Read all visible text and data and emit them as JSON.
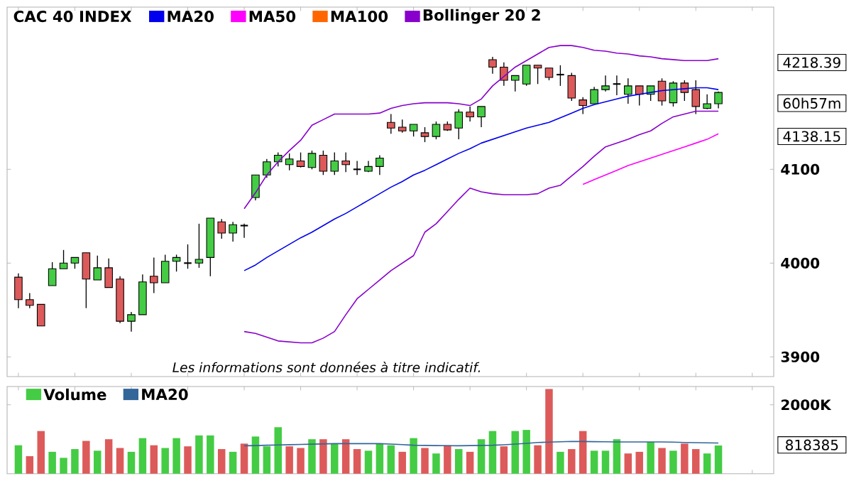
{
  "chart_data": [
    {
      "type": "candlestick",
      "title": "CAC 40 INDEX",
      "legend": "top left",
      "tick_labels": "y",
      "categories": [
        null,
        null,
        null,
        null,
        null,
        null,
        null,
        null,
        null,
        null,
        null,
        null,
        null,
        null,
        null,
        null,
        null,
        null,
        null,
        null,
        null,
        null,
        null,
        null,
        null,
        null,
        null,
        null,
        null,
        null,
        null,
        null,
        null,
        null,
        null,
        null,
        null,
        null,
        null,
        null,
        null,
        null,
        null,
        null,
        null,
        null,
        null,
        null,
        null,
        null,
        null,
        null,
        null,
        null,
        null,
        null,
        null,
        null,
        null,
        null,
        null,
        null,
        null
      ],
      "ohlc": [
        [
          3985,
          3989,
          3952,
          3961
        ],
        [
          3961,
          3968,
          3952,
          3955
        ],
        [
          3956,
          3956,
          3933,
          3933
        ],
        [
          3976,
          4001,
          3976,
          3994
        ],
        [
          3994,
          4014,
          3994,
          4000
        ],
        [
          4000,
          4006,
          3994,
          4006
        ],
        [
          4011,
          4011,
          3952,
          3983
        ],
        [
          3982,
          4008,
          3982,
          3995
        ],
        [
          3995,
          4005,
          3974,
          3974
        ],
        [
          3983,
          3986,
          3936,
          3938
        ],
        [
          3938,
          3948,
          3927,
          3945
        ],
        [
          3945,
          3988,
          3945,
          3980
        ],
        [
          3986,
          4006,
          3968,
          3979
        ],
        [
          3979,
          4009,
          3979,
          4002
        ],
        [
          4002,
          4009,
          3991,
          4006
        ],
        [
          4000,
          4020,
          3994,
          4000
        ],
        [
          4000,
          4042,
          3995,
          4004
        ],
        [
          4006,
          4048,
          3986,
          4048
        ],
        [
          4044,
          4047,
          4026,
          4032
        ],
        [
          4032,
          4044,
          4023,
          4041
        ],
        [
          4040,
          4042,
          4027,
          4040
        ],
        [
          4070,
          4094,
          4067,
          4094
        ],
        [
          4094,
          4111,
          4091,
          4108
        ],
        [
          4108,
          4118,
          4103,
          4115
        ],
        [
          4105,
          4117,
          4099,
          4111
        ],
        [
          4109,
          4118,
          4102,
          4103
        ],
        [
          4102,
          4120,
          4100,
          4117
        ],
        [
          4115,
          4120,
          4094,
          4098
        ],
        [
          4098,
          4118,
          4094,
          4109
        ],
        [
          4109,
          4118,
          4097,
          4105
        ],
        [
          4100,
          4109,
          4094,
          4100
        ],
        [
          4098,
          4109,
          4097,
          4103
        ],
        [
          4103,
          4115,
          4094,
          4112
        ],
        [
          4150,
          4159,
          4138,
          4144
        ],
        [
          4145,
          4153,
          4139,
          4141
        ],
        [
          4141,
          4148,
          4135,
          4148
        ],
        [
          4139,
          4145,
          4129,
          4135
        ],
        [
          4135,
          4151,
          4132,
          4148
        ],
        [
          4148,
          4151,
          4141,
          4142
        ],
        [
          4144,
          4164,
          4132,
          4161
        ],
        [
          4161,
          4167,
          4151,
          4156
        ],
        [
          4156,
          4167,
          4145,
          4167
        ],
        [
          4217,
          4220,
          4202,
          4209
        ],
        [
          4209,
          4214,
          4189,
          4195
        ],
        [
          4195,
          4200,
          4183,
          4200
        ],
        [
          4191,
          4211,
          4189,
          4211
        ],
        [
          4211,
          4211,
          4191,
          4208
        ],
        [
          4208,
          4208,
          4195,
          4198
        ],
        [
          4201,
          4211,
          4189,
          4201
        ],
        [
          4200,
          4203,
          4173,
          4176
        ],
        [
          4174,
          4177,
          4159,
          4168
        ],
        [
          4170,
          4188,
          4170,
          4185
        ],
        [
          4185,
          4200,
          4183,
          4189
        ],
        [
          4191,
          4200,
          4179,
          4191
        ],
        [
          4180,
          4197,
          4170,
          4189
        ],
        [
          4189,
          4189,
          4168,
          4180
        ],
        [
          4180,
          4189,
          4173,
          4189
        ],
        [
          4194,
          4197,
          4168,
          4173
        ],
        [
          4171,
          4194,
          4167,
          4192
        ],
        [
          4192,
          4195,
          4173,
          4182
        ],
        [
          4185,
          4195,
          4159,
          4167
        ],
        [
          4165,
          4180,
          4164,
          4170
        ],
        [
          4170,
          4183,
          4165,
          4182
        ]
      ],
      "colors": [
        "#dd5a5a",
        "#dd5a5a",
        "#dd5a5a",
        "#44cc44",
        "#44cc44",
        "#44cc44",
        "#dd5a5a",
        "#44cc44",
        "#dd5a5a",
        "#dd5a5a",
        "#44cc44",
        "#44cc44",
        "#dd5a5a",
        "#44cc44",
        "#44cc44",
        "#000000",
        "#44cc44",
        "#44cc44",
        "#dd5a5a",
        "#44cc44",
        "#000000",
        "#44cc44",
        "#44cc44",
        "#44cc44",
        "#44cc44",
        "#dd5a5a",
        "#44cc44",
        "#dd5a5a",
        "#44cc44",
        "#dd5a5a",
        "#000000",
        "#44cc44",
        "#44cc44",
        "#dd5a5a",
        "#dd5a5a",
        "#44cc44",
        "#dd5a5a",
        "#44cc44",
        "#dd5a5a",
        "#44cc44",
        "#dd5a5a",
        "#44cc44",
        "#dd5a5a",
        "#dd5a5a",
        "#44cc44",
        "#44cc44",
        "#dd5a5a",
        "#dd5a5a",
        "#000000",
        "#dd5a5a",
        "#dd5a5a",
        "#44cc44",
        "#44cc44",
        "#000000",
        "#44cc44",
        "#dd5a5a",
        "#44cc44",
        "#dd5a5a",
        "#44cc44",
        "#dd5a5a",
        "#dd5a5a",
        "#44cc44",
        "#44cc44"
      ],
      "series": [
        {
          "type": "line",
          "name": "MA20",
          "color": "#0000ee",
          "values": [
            null,
            null,
            null,
            null,
            null,
            null,
            null,
            null,
            null,
            null,
            null,
            null,
            null,
            null,
            null,
            null,
            null,
            null,
            null,
            null,
            3992,
            3998,
            4006,
            4013,
            4020,
            4027,
            4033,
            4040,
            4047,
            4053,
            4060,
            4067,
            4074,
            4081,
            4087,
            4094,
            4099,
            4105,
            4111,
            4117,
            4122,
            4128,
            4132,
            4136,
            4140,
            4144,
            4147,
            4150,
            4155,
            4160,
            4165,
            4169,
            4172,
            4175,
            4178,
            4180,
            4182,
            4184,
            4185,
            4186,
            4187,
            4187,
            4185
          ]
        },
        {
          "type": "line",
          "name": "MA50",
          "color": "#ff00ff",
          "values": [
            null,
            null,
            null,
            null,
            null,
            null,
            null,
            null,
            null,
            null,
            null,
            null,
            null,
            null,
            null,
            null,
            null,
            null,
            null,
            null,
            null,
            null,
            null,
            null,
            null,
            null,
            null,
            null,
            null,
            null,
            null,
            null,
            null,
            null,
            null,
            null,
            null,
            null,
            null,
            null,
            null,
            null,
            null,
            null,
            null,
            null,
            null,
            null,
            null,
            null,
            4084,
            4089,
            4094,
            4099,
            4104,
            4108,
            4112,
            4116,
            4120,
            4124,
            4128,
            4132,
            4138
          ]
        },
        {
          "type": "line",
          "name": "MA100",
          "color": "#ff6600",
          "values": [
            null,
            null,
            null,
            null,
            null,
            null,
            null,
            null,
            null,
            null,
            null,
            null,
            null,
            null,
            null,
            null,
            null,
            null,
            null,
            null,
            null,
            null,
            null,
            null,
            null,
            null,
            null,
            null,
            null,
            null,
            null,
            null,
            null,
            null,
            null,
            null,
            null,
            null,
            null,
            null,
            null,
            null,
            null,
            null,
            null,
            null,
            null,
            null,
            null,
            null,
            null,
            null,
            null,
            null,
            null,
            null,
            null,
            null,
            null,
            null,
            null,
            null,
            null
          ]
        },
        {
          "type": "line",
          "name": "Bollinger 20 2",
          "color": "#8800cc",
          "values": [
            null,
            null,
            null,
            null,
            null,
            null,
            null,
            null,
            null,
            null,
            null,
            null,
            null,
            null,
            null,
            null,
            null,
            null,
            null,
            null,
            4058,
            4075,
            4094,
            4108,
            4120,
            4131,
            4147,
            4153,
            4159,
            4159,
            4159,
            4159,
            4160,
            4165,
            4168,
            4170,
            4171,
            4171,
            4171,
            4170,
            4168,
            4175,
            4189,
            4199,
            4209,
            4216,
            4223,
            4230,
            4232,
            4232,
            4230,
            4227,
            4226,
            4224,
            4223,
            4221,
            4220,
            4218,
            4217,
            4216,
            4216,
            4216,
            4218
          ]
        },
        {
          "type": "line",
          "color": "#8800cc",
          "values": [
            null,
            null,
            null,
            null,
            null,
            null,
            null,
            null,
            null,
            null,
            null,
            null,
            null,
            null,
            null,
            null,
            null,
            null,
            null,
            null,
            3927,
            3925,
            3921,
            3917,
            3916,
            3915,
            3915,
            3920,
            3927,
            3945,
            3962,
            3972,
            3982,
            3992,
            4000,
            4008,
            4033,
            4042,
            4055,
            4068,
            4080,
            4076,
            4074,
            4073,
            4073,
            4073,
            4074,
            4080,
            4083,
            4093,
            4103,
            4114,
            4124,
            4128,
            4132,
            4137,
            4141,
            4149,
            4156,
            4159,
            4162,
            4162,
            4162
          ]
        }
      ],
      "ylim": [
        3879,
        4273
      ],
      "yticks": [
        3900,
        4000,
        4100
      ],
      "annotations": [
        "Les informations sont données à titre indicatif.",
        "4218.39",
        "60h57m",
        "4138.15"
      ]
    },
    {
      "type": "bar",
      "legend": "top left",
      "tick_labels": "y",
      "categories": [
        null,
        null,
        null,
        null,
        null,
        null,
        null,
        null,
        null,
        null,
        null,
        null,
        null,
        null,
        null,
        null,
        null,
        null,
        null,
        null,
        null,
        null,
        null,
        null,
        null,
        null,
        null,
        null,
        null,
        null,
        null,
        null,
        null,
        null,
        null,
        null,
        null,
        null,
        null,
        null,
        null,
        null,
        null,
        null,
        null,
        null,
        null,
        null,
        null,
        null,
        null,
        null,
        null,
        null,
        null,
        null,
        null,
        null,
        null,
        null,
        null,
        null,
        null
      ],
      "series": [
        {
          "type": "bar",
          "name": "Volume",
          "values": [
            825000,
            508000,
            1238000,
            635000,
            460000,
            714000,
            952000,
            667000,
            1000000,
            746000,
            635000,
            1032000,
            825000,
            746000,
            1032000,
            794000,
            1111000,
            1111000,
            714000,
            635000,
            873000,
            1079000,
            794000,
            1349000,
            794000,
            746000,
            1000000,
            1000000,
            873000,
            1000000,
            714000,
            667000,
            873000,
            825000,
            635000,
            1032000,
            746000,
            587000,
            825000,
            714000,
            635000,
            1000000,
            1238000,
            794000,
            1238000,
            1270000,
            825000,
            2460000,
            635000,
            714000,
            1238000,
            667000,
            667000,
            1000000,
            587000,
            635000,
            921000,
            746000,
            667000,
            873000,
            714000,
            587000,
            818385
          ],
          "colors": [
            "#44cc44",
            "#dd5a5a",
            "#dd5a5a",
            "#44cc44",
            "#44cc44",
            "#44cc44",
            "#dd5a5a",
            "#44cc44",
            "#dd5a5a",
            "#dd5a5a",
            "#44cc44",
            "#44cc44",
            "#dd5a5a",
            "#44cc44",
            "#44cc44",
            "#dd5a5a",
            "#44cc44",
            "#44cc44",
            "#dd5a5a",
            "#44cc44",
            "#dd5a5a",
            "#44cc44",
            "#44cc44",
            "#44cc44",
            "#dd5a5a",
            "#dd5a5a",
            "#44cc44",
            "#dd5a5a",
            "#44cc44",
            "#dd5a5a",
            "#dd5a5a",
            "#44cc44",
            "#44cc44",
            "#44cc44",
            "#dd5a5a",
            "#44cc44",
            "#dd5a5a",
            "#44cc44",
            "#dd5a5a",
            "#44cc44",
            "#dd5a5a",
            "#44cc44",
            "#44cc44",
            "#dd5a5a",
            "#44cc44",
            "#44cc44",
            "#dd5a5a",
            "#dd5a5a",
            "#44cc44",
            "#dd5a5a",
            "#dd5a5a",
            "#44cc44",
            "#44cc44",
            "#44cc44",
            "#dd5a5a",
            "#dd5a5a",
            "#44cc44",
            "#dd5a5a",
            "#44cc44",
            "#dd5a5a",
            "#dd5a5a",
            "#44cc44",
            "#44cc44"
          ]
        },
        {
          "type": "line",
          "name": "MA20",
          "color": "#336699",
          "values": [
            null,
            null,
            null,
            null,
            null,
            null,
            null,
            null,
            null,
            null,
            null,
            null,
            null,
            null,
            null,
            null,
            null,
            null,
            null,
            null,
            810000,
            815000,
            825000,
            835000,
            841000,
            849000,
            857000,
            865000,
            873000,
            873000,
            873000,
            873000,
            873000,
            860000,
            845000,
            825000,
            820000,
            815000,
            812000,
            810000,
            815000,
            820000,
            825000,
            840000,
            860000,
            880000,
            905000,
            915000,
            925000,
            937000,
            935000,
            930000,
            925000,
            921000,
            921000,
            921000,
            921000,
            921000,
            915000,
            905000,
            900000,
            895000,
            889000
          ]
        }
      ],
      "ylim": [
        0,
        2530000
      ],
      "yticks": [
        {
          "value": 2000000,
          "label": "2000K"
        }
      ],
      "annotations": [
        "818385"
      ]
    }
  ]
}
